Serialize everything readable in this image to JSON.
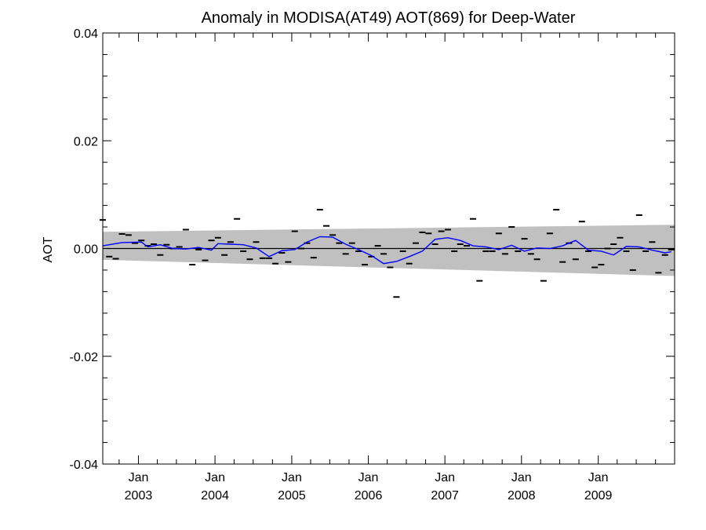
{
  "chart_data": {
    "type": "scatter",
    "title": "Anomaly in MODISA(AT49) AOT(869) for Deep-Water",
    "xlabel": "",
    "ylabel": "AOT",
    "xlim": [
      "2002-07-15",
      "2009-12-31"
    ],
    "ylim": [
      -0.04,
      0.04
    ],
    "y_ticks": [
      {
        "value": 0.04,
        "label": "0.04"
      },
      {
        "value": 0.02,
        "label": "0.02"
      },
      {
        "value": 0.0,
        "label": "0.00"
      },
      {
        "value": -0.02,
        "label": "-0.02"
      },
      {
        "value": -0.04,
        "label": "-0.04"
      }
    ],
    "x_ticks": [
      {
        "date": "2003-01-01",
        "month": "Jan",
        "year": "2003"
      },
      {
        "date": "2004-01-01",
        "month": "Jan",
        "year": "2004"
      },
      {
        "date": "2005-01-01",
        "month": "Jan",
        "year": "2005"
      },
      {
        "date": "2006-01-01",
        "month": "Jan",
        "year": "2006"
      },
      {
        "date": "2007-01-01",
        "month": "Jan",
        "year": "2007"
      },
      {
        "date": "2008-01-01",
        "month": "Jan",
        "year": "2008"
      },
      {
        "date": "2009-01-01",
        "month": "Jan",
        "year": "2009"
      }
    ],
    "grid": false,
    "zero_line": 0.0,
    "uncertainty_band": {
      "color": "#c0c0c0",
      "start": {
        "date": "2002-07-15",
        "upper": 0.0031,
        "lower": -0.0021
      },
      "end": {
        "date": "2009-12-31",
        "upper": 0.0044,
        "lower": -0.0051
      }
    },
    "series": [
      {
        "kind": "monthly_anomaly_markers",
        "color": "#000000",
        "points": [
          {
            "x": "2002-07",
            "y": 0.0053
          },
          {
            "x": "2002-08",
            "y": -0.0015
          },
          {
            "x": "2002-09",
            "y": -0.0019
          },
          {
            "x": "2002-10",
            "y": 0.0027
          },
          {
            "x": "2002-11",
            "y": 0.0025
          },
          {
            "x": "2002-12",
            "y": 0.001
          },
          {
            "x": "2003-01",
            "y": 0.0015
          },
          {
            "x": "2003-02",
            "y": 0.0005
          },
          {
            "x": "2003-03",
            "y": 0.0008
          },
          {
            "x": "2003-04",
            "y": -0.0012
          },
          {
            "x": "2003-05",
            "y": 0.0007
          },
          {
            "x": "2003-06",
            "y": 0.0
          },
          {
            "x": "2003-07",
            "y": 0.0003
          },
          {
            "x": "2003-08",
            "y": 0.0035
          },
          {
            "x": "2003-09",
            "y": -0.003
          },
          {
            "x": "2003-10",
            "y": -0.0002
          },
          {
            "x": "2003-11",
            "y": -0.0022
          },
          {
            "x": "2003-12",
            "y": 0.0015
          },
          {
            "x": "2004-01",
            "y": 0.002
          },
          {
            "x": "2004-02",
            "y": -0.0012
          },
          {
            "x": "2004-03",
            "y": 0.0012
          },
          {
            "x": "2004-04",
            "y": 0.0055
          },
          {
            "x": "2004-05",
            "y": -0.0005
          },
          {
            "x": "2004-06",
            "y": -0.002
          },
          {
            "x": "2004-07",
            "y": 0.0012
          },
          {
            "x": "2004-08",
            "y": -0.0018
          },
          {
            "x": "2004-09",
            "y": -0.0018
          },
          {
            "x": "2004-10",
            "y": -0.0028
          },
          {
            "x": "2004-11",
            "y": -0.0008
          },
          {
            "x": "2004-12",
            "y": -0.0025
          },
          {
            "x": "2005-01",
            "y": 0.0032
          },
          {
            "x": "2005-02",
            "y": 0.0
          },
          {
            "x": "2005-03",
            "y": 0.001
          },
          {
            "x": "2005-04",
            "y": -0.0017
          },
          {
            "x": "2005-05",
            "y": 0.0072
          },
          {
            "x": "2005-06",
            "y": 0.0042
          },
          {
            "x": "2005-07",
            "y": 0.0025
          },
          {
            "x": "2005-08",
            "y": 0.001
          },
          {
            "x": "2005-09",
            "y": -0.001
          },
          {
            "x": "2005-10",
            "y": 0.001
          },
          {
            "x": "2005-11",
            "y": -0.0005
          },
          {
            "x": "2005-12",
            "y": -0.003
          },
          {
            "x": "2006-01",
            "y": -0.0015
          },
          {
            "x": "2006-02",
            "y": 0.0005
          },
          {
            "x": "2006-03",
            "y": -0.001
          },
          {
            "x": "2006-04",
            "y": -0.0035
          },
          {
            "x": "2006-05",
            "y": -0.009
          },
          {
            "x": "2006-06",
            "y": -0.0005
          },
          {
            "x": "2006-07",
            "y": -0.0028
          },
          {
            "x": "2006-08",
            "y": 0.001
          },
          {
            "x": "2006-09",
            "y": 0.003
          },
          {
            "x": "2006-10",
            "y": 0.0028
          },
          {
            "x": "2006-11",
            "y": 0.0008
          },
          {
            "x": "2006-12",
            "y": 0.0032
          },
          {
            "x": "2007-01",
            "y": 0.0035
          },
          {
            "x": "2007-02",
            "y": -0.0005
          },
          {
            "x": "2007-03",
            "y": 0.0008
          },
          {
            "x": "2007-04",
            "y": 0.0005
          },
          {
            "x": "2007-05",
            "y": 0.0055
          },
          {
            "x": "2007-06",
            "y": -0.006
          },
          {
            "x": "2007-07",
            "y": -0.0005
          },
          {
            "x": "2007-08",
            "y": -0.0005
          },
          {
            "x": "2007-09",
            "y": 0.0028
          },
          {
            "x": "2007-10",
            "y": -0.001
          },
          {
            "x": "2007-11",
            "y": 0.004
          },
          {
            "x": "2007-12",
            "y": -0.0005
          },
          {
            "x": "2008-01",
            "y": 0.0018
          },
          {
            "x": "2008-02",
            "y": -0.001
          },
          {
            "x": "2008-03",
            "y": -0.002
          },
          {
            "x": "2008-04",
            "y": -0.006
          },
          {
            "x": "2008-05",
            "y": 0.0028
          },
          {
            "x": "2008-06",
            "y": 0.0072
          },
          {
            "x": "2008-07",
            "y": -0.0025
          },
          {
            "x": "2008-08",
            "y": 0.001
          },
          {
            "x": "2008-09",
            "y": -0.002
          },
          {
            "x": "2008-10",
            "y": 0.005
          },
          {
            "x": "2008-11",
            "y": -0.0005
          },
          {
            "x": "2008-12",
            "y": -0.0035
          },
          {
            "x": "2009-01",
            "y": -0.003
          },
          {
            "x": "2009-02",
            "y": 0.0
          },
          {
            "x": "2009-03",
            "y": 0.0008
          },
          {
            "x": "2009-04",
            "y": 0.002
          },
          {
            "x": "2009-05",
            "y": -0.0005
          },
          {
            "x": "2009-06",
            "y": -0.004
          },
          {
            "x": "2009-07",
            "y": 0.0062
          },
          {
            "x": "2009-08",
            "y": -0.0005
          },
          {
            "x": "2009-09",
            "y": 0.0012
          },
          {
            "x": "2009-10",
            "y": -0.0045
          },
          {
            "x": "2009-11",
            "y": -0.0012
          },
          {
            "x": "2009-12",
            "y": -0.0002
          }
        ]
      },
      {
        "kind": "smoothed_line",
        "color": "#0000ff",
        "points": [
          {
            "x": "2002-07",
            "y": 0.0005
          },
          {
            "x": "2002-10",
            "y": 0.0011
          },
          {
            "x": "2003-01",
            "y": 0.0012
          },
          {
            "x": "2003-02",
            "y": 0.0003
          },
          {
            "x": "2003-04",
            "y": 0.0007
          },
          {
            "x": "2003-06",
            "y": 0.0
          },
          {
            "x": "2003-08",
            "y": -0.0001
          },
          {
            "x": "2003-10",
            "y": 0.0002
          },
          {
            "x": "2003-12",
            "y": -0.0003
          },
          {
            "x": "2004-01",
            "y": 0.0009
          },
          {
            "x": "2004-03",
            "y": 0.0008
          },
          {
            "x": "2004-05",
            "y": 0.0007
          },
          {
            "x": "2004-07",
            "y": 0.0001
          },
          {
            "x": "2004-09",
            "y": -0.0015
          },
          {
            "x": "2004-11",
            "y": -0.0004
          },
          {
            "x": "2005-01",
            "y": -0.0002
          },
          {
            "x": "2005-03",
            "y": 0.0012
          },
          {
            "x": "2005-05",
            "y": 0.0022
          },
          {
            "x": "2005-07",
            "y": 0.0021
          },
          {
            "x": "2005-09",
            "y": 0.0008
          },
          {
            "x": "2005-11",
            "y": -0.0002
          },
          {
            "x": "2006-01",
            "y": -0.0013
          },
          {
            "x": "2006-03",
            "y": -0.0028
          },
          {
            "x": "2006-05",
            "y": -0.0024
          },
          {
            "x": "2006-07",
            "y": -0.0015
          },
          {
            "x": "2006-09",
            "y": -0.0005
          },
          {
            "x": "2006-11",
            "y": 0.0017
          },
          {
            "x": "2007-01",
            "y": 0.002
          },
          {
            "x": "2007-03",
            "y": 0.0015
          },
          {
            "x": "2007-05",
            "y": 0.0005
          },
          {
            "x": "2007-07",
            "y": 0.0003
          },
          {
            "x": "2007-09",
            "y": -0.0002
          },
          {
            "x": "2007-11",
            "y": 0.0006
          },
          {
            "x": "2008-01",
            "y": -0.0005
          },
          {
            "x": "2008-03",
            "y": 0.0001
          },
          {
            "x": "2008-05",
            "y": 0.0
          },
          {
            "x": "2008-07",
            "y": 0.0005
          },
          {
            "x": "2008-09",
            "y": 0.0015
          },
          {
            "x": "2008-11",
            "y": -0.0003
          },
          {
            "x": "2009-01",
            "y": -0.0005
          },
          {
            "x": "2009-03",
            "y": -0.0012
          },
          {
            "x": "2009-05",
            "y": 0.0004
          },
          {
            "x": "2009-07",
            "y": 0.0003
          },
          {
            "x": "2009-09",
            "y": -0.0003
          },
          {
            "x": "2009-11",
            "y": -0.0008
          },
          {
            "x": "2009-12",
            "y": -0.0006
          }
        ]
      }
    ]
  }
}
